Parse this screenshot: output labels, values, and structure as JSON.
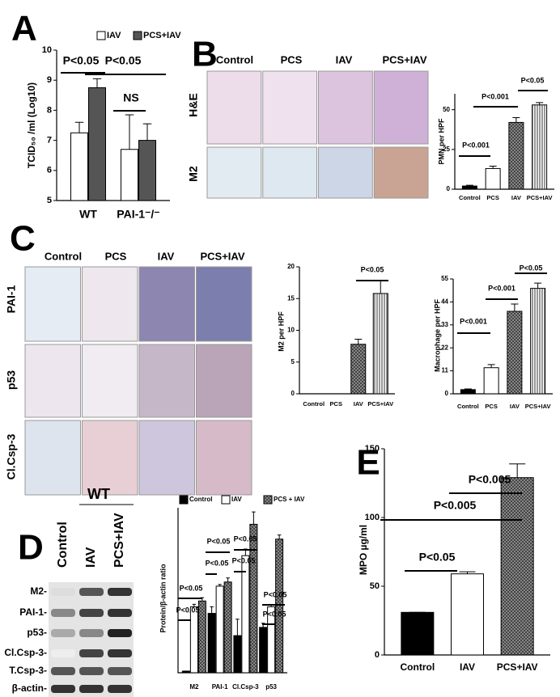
{
  "panel_labels": [
    "A",
    "B",
    "C",
    "D",
    "E"
  ],
  "micrographs_B": {
    "columns": [
      "Control",
      "PCS",
      "IAV",
      "PCS+IAV"
    ],
    "rows": [
      "H&E",
      "M2"
    ]
  },
  "micrographs_C": {
    "columns": [
      "Control",
      "PCS",
      "IAV",
      "PCS+IAV"
    ],
    "rows": [
      "PAI-1",
      "p53",
      "Cl.Csp-3"
    ]
  },
  "blot": {
    "group": "WT",
    "lanes": [
      "Control",
      "IAV",
      "PCS+IAV"
    ],
    "rows": [
      "M2-",
      "PAI-1-",
      "p53-",
      "Cl.Csp-3-",
      "T.Csp-3-",
      "β-actin-"
    ]
  },
  "chart_data": [
    {
      "type": "bar",
      "y_label": "TCID₅₀ /ml (Log10)",
      "categories": [
        "WT",
        "PAI-1⁻/⁻"
      ],
      "series": [
        {
          "name": "IAV",
          "color": "#ffffff",
          "pattern": "solid",
          "values": [
            7.25,
            6.7
          ],
          "errors": [
            0.35,
            1.15
          ]
        },
        {
          "name": "PCS+IAV",
          "color": "#555555",
          "pattern": "solid",
          "values": [
            8.75,
            7.0
          ],
          "errors": [
            0.3,
            0.55
          ]
        }
      ],
      "ylim": [
        5,
        10
      ],
      "yticks": [
        5,
        6,
        7,
        8,
        9,
        10
      ],
      "annotations": [
        "P<0.05",
        "P<0.05",
        "NS"
      ]
    },
    {
      "type": "bar",
      "y_label": "PMN per HPF",
      "categories": [
        "Control",
        "PCS",
        "IAV",
        "PCS+IAV"
      ],
      "values": [
        2,
        13,
        42,
        53
      ],
      "errors": [
        0.5,
        1.5,
        3,
        1.5
      ],
      "colors": [
        "#000000",
        "#ffffff",
        "#888888",
        "#ffffff"
      ],
      "patterns": [
        "solid",
        "solid",
        "crosshatch",
        "vertical"
      ],
      "ylim": [
        0,
        60
      ],
      "yticks": [
        0,
        25,
        50
      ],
      "annotations": [
        "P<0.001",
        "P<0.001",
        "P<0.05"
      ]
    },
    {
      "type": "bar",
      "y_label": "M2 per HPF",
      "categories": [
        "Control",
        "PCS",
        "IAV",
        "PCS+IAV"
      ],
      "values": [
        0,
        0,
        7.8,
        15.8
      ],
      "errors": [
        0,
        0,
        0.8,
        2.0
      ],
      "colors": [
        "#000000",
        "#ffffff",
        "#888888",
        "#ffffff"
      ],
      "patterns": [
        "solid",
        "solid",
        "crosshatch",
        "vertical"
      ],
      "ylim": [
        0,
        20
      ],
      "yticks": [
        0,
        5,
        10,
        15,
        20
      ],
      "annotations": [
        "P<0.05"
      ]
    },
    {
      "type": "bar",
      "y_label": "Macrophage per HPF",
      "categories": [
        "Control",
        "PCS",
        "IAV",
        "PCS+IAV"
      ],
      "values": [
        2,
        12.5,
        39.5,
        50.5
      ],
      "errors": [
        0.3,
        1.5,
        3.5,
        2.5
      ],
      "colors": [
        "#000000",
        "#ffffff",
        "#888888",
        "#ffffff"
      ],
      "patterns": [
        "solid",
        "solid",
        "crosshatch",
        "vertical"
      ],
      "ylim": [
        0,
        55
      ],
      "yticks": [
        0,
        11,
        22,
        33,
        44,
        55
      ],
      "annotations": [
        "P<0.001",
        "P<0.001",
        "P<0.05"
      ]
    },
    {
      "type": "bar",
      "y_label": "Protein/β-actin ratio",
      "categories": [
        "M2",
        "PAI-1",
        "Cl.Csp-3",
        "p53"
      ],
      "series": [
        {
          "name": "Control",
          "color": "#000000",
          "pattern": "solid",
          "values": [
            0.02,
            0.72,
            0.45,
            0.55
          ],
          "errors": [
            0,
            0.08,
            0.2,
            0.05
          ]
        },
        {
          "name": "IAV",
          "color": "#ffffff",
          "pattern": "solid",
          "values": [
            0.8,
            1.05,
            1.42,
            0.8
          ],
          "errors": [
            0.03,
            0.02,
            0.08,
            0.02
          ]
        },
        {
          "name": "PCS + IAV",
          "color": "#888888",
          "pattern": "crosshatch",
          "values": [
            0.87,
            1.1,
            1.8,
            1.62
          ],
          "errors": [
            0.04,
            0.05,
            0.15,
            0.05
          ]
        }
      ],
      "ylim": [
        0,
        2
      ],
      "annotations": [
        "P<0.05",
        "P<0.05",
        "P<0.05",
        "P<0.05",
        "P<0.05",
        "P<0.05",
        "P<0.05",
        "P<0.05"
      ]
    },
    {
      "type": "bar",
      "y_label": "MPO µg/ml",
      "categories": [
        "Control",
        "IAV",
        "PCS+IAV"
      ],
      "values": [
        31,
        59,
        129
      ],
      "errors": [
        0,
        1.5,
        10
      ],
      "colors": [
        "#000000",
        "#ffffff",
        "#888888"
      ],
      "patterns": [
        "solid",
        "solid",
        "crosshatch"
      ],
      "ylim": [
        0,
        150
      ],
      "yticks": [
        0,
        50,
        100,
        150
      ],
      "annotations": [
        "P<0.05",
        "P<0.005",
        "P<0.005"
      ]
    }
  ]
}
